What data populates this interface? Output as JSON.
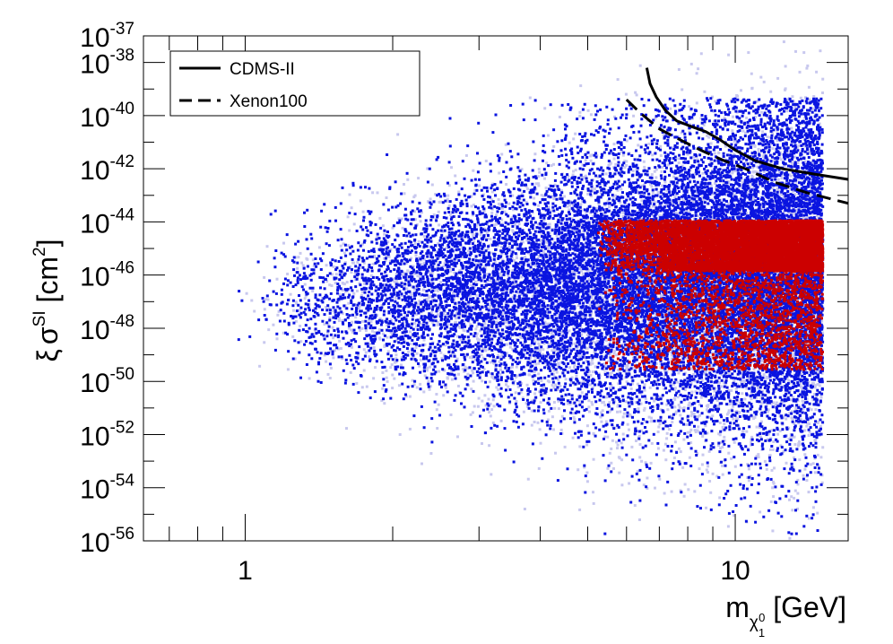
{
  "chart_data": {
    "type": "scatter",
    "title": "",
    "xlabel": "m_{χ₁⁰} [GeV]",
    "xlabel_parts": {
      "main": "m",
      "sub": "χ",
      "subsub": "1",
      "subsup": "0",
      "unit": " [GeV]"
    },
    "ylabel": "ξ σ^SI [cm²]",
    "ylabel_parts": {
      "xi": "ξ",
      "sigma": "σ",
      "sup": "SI",
      "unit_open": " [cm",
      "unit_sup": "2",
      "unit_close": "]"
    },
    "x_scale": "log",
    "y_scale": "log",
    "xlim": [
      0.62,
      17
    ],
    "ylim": [
      1e-56,
      1e-37
    ],
    "x_tick_labels": [
      {
        "value": 1,
        "label": "1"
      },
      {
        "value": 10,
        "label": "10"
      }
    ],
    "y_tick_labels": [
      {
        "exp": -56,
        "base": "10",
        "sup": "-56"
      },
      {
        "exp": -54,
        "base": "10",
        "sup": "-54"
      },
      {
        "exp": -52,
        "base": "10",
        "sup": "-52"
      },
      {
        "exp": -50,
        "base": "10",
        "sup": "-50"
      },
      {
        "exp": -48,
        "base": "10",
        "sup": "-48"
      },
      {
        "exp": -46,
        "base": "10",
        "sup": "-46"
      },
      {
        "exp": -44,
        "base": "10",
        "sup": "-44"
      },
      {
        "exp": -42,
        "base": "10",
        "sup": "-42"
      },
      {
        "exp": -40,
        "base": "10",
        "sup": "-40"
      },
      {
        "exp": -38,
        "base": "10",
        "sup": "-38"
      },
      {
        "exp": -37,
        "base": "10",
        "sup": "-37"
      }
    ],
    "grid": false,
    "legend_position": "top-left",
    "legend": [
      {
        "name": "CDMS-II",
        "style": "solid"
      },
      {
        "name": "Xenon100",
        "style": "dashed"
      }
    ],
    "series": [
      {
        "name": "CDMS-II",
        "type": "line",
        "style": "solid",
        "color": "#000000",
        "x": [
          6.6,
          6.7,
          6.9,
          7.2,
          7.6,
          8.1,
          8.7,
          9.3,
          10.0,
          11.0,
          12.5,
          14.5,
          17.0
        ],
        "log10_y": [
          -38.2,
          -38.8,
          -39.3,
          -39.8,
          -40.2,
          -40.4,
          -40.6,
          -40.9,
          -41.3,
          -41.7,
          -42.0,
          -42.2,
          -42.4
        ]
      },
      {
        "name": "Xenon100",
        "type": "line",
        "style": "dashed",
        "color": "#000000",
        "x": [
          6.0,
          6.4,
          7.0,
          7.7,
          8.5,
          9.5,
          10.5,
          12.0,
          14.0,
          17.0
        ],
        "log10_y": [
          -39.4,
          -39.9,
          -40.5,
          -40.9,
          -41.3,
          -41.7,
          -42.0,
          -42.5,
          -42.9,
          -43.3
        ]
      }
    ],
    "scatter_clouds": [
      {
        "name": "",
        "color": "#c8c8ee",
        "description": "light blue points, broad spread"
      },
      {
        "name": "",
        "color": "#0a14e0",
        "description": "blue points, main population"
      },
      {
        "name": "",
        "color": "#cc0000",
        "description": "red points, concentrated near 10^-45 to 10^-44 for m > 5 GeV"
      }
    ],
    "scatter_extent": {
      "x_range": [
        0.93,
        15.0
      ],
      "log10_y_range_blue": [
        -55.5,
        -39.3
      ],
      "log10_y_range_red": [
        -51.0,
        -43.9
      ],
      "red_core_log10_y": [
        -45.8,
        -43.9
      ]
    }
  }
}
